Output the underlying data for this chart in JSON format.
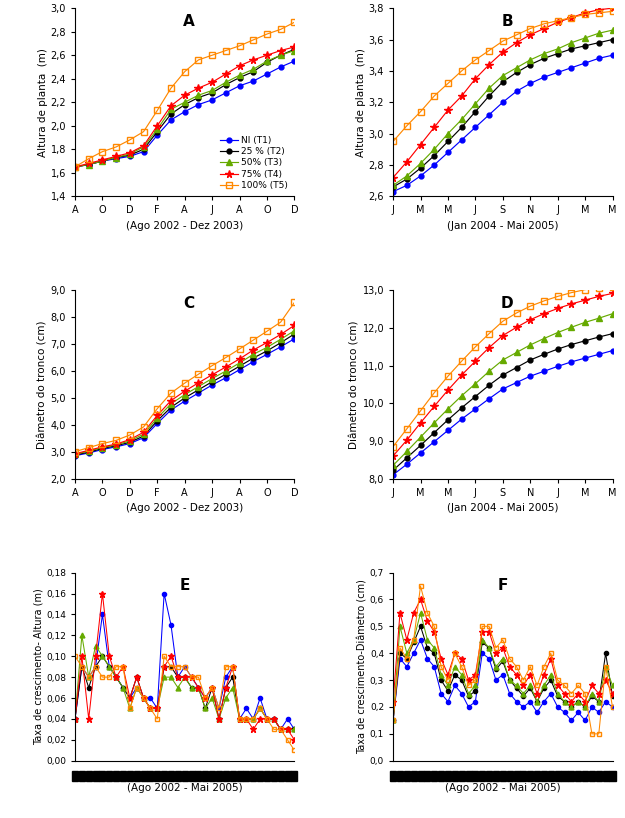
{
  "panel_A": {
    "title": "A",
    "ylabel": "Altura de planta  (m)",
    "xlabel": "(Ago 2002 - Dez 2003)",
    "xticks": [
      "A",
      "O",
      "D",
      "F",
      "A",
      "J",
      "A",
      "O",
      "D"
    ],
    "ylim": [
      1.4,
      3.0
    ],
    "yticks": [
      1.4,
      1.6,
      1.8,
      2.0,
      2.2,
      2.4,
      2.6,
      2.8,
      3.0
    ],
    "n_points": 17,
    "T1": [
      1.65,
      1.67,
      1.7,
      1.72,
      1.74,
      1.78,
      1.92,
      2.05,
      2.12,
      2.18,
      2.22,
      2.28,
      2.34,
      2.38,
      2.44,
      2.5,
      2.55
    ],
    "T2": [
      1.65,
      1.67,
      1.7,
      1.73,
      1.75,
      1.8,
      1.95,
      2.1,
      2.18,
      2.24,
      2.28,
      2.35,
      2.41,
      2.46,
      2.54,
      2.6,
      2.65
    ],
    "T3": [
      1.65,
      1.67,
      1.7,
      1.73,
      1.76,
      1.82,
      1.97,
      2.14,
      2.2,
      2.26,
      2.3,
      2.37,
      2.43,
      2.48,
      2.55,
      2.6,
      2.64
    ],
    "T4": [
      1.65,
      1.68,
      1.71,
      1.74,
      1.77,
      1.83,
      2.0,
      2.17,
      2.26,
      2.32,
      2.37,
      2.44,
      2.51,
      2.56,
      2.6,
      2.64,
      2.67
    ],
    "T5": [
      1.65,
      1.72,
      1.78,
      1.82,
      1.88,
      1.95,
      2.13,
      2.32,
      2.46,
      2.56,
      2.6,
      2.64,
      2.68,
      2.73,
      2.78,
      2.82,
      2.88
    ]
  },
  "panel_B": {
    "title": "B",
    "ylabel": "Altura de planta  (m)",
    "xlabel": "(Jan 2004 - Mai 2005)",
    "xticks": [
      "J",
      "M",
      "M",
      "J",
      "S",
      "N",
      "J",
      "M",
      "M"
    ],
    "ylim": [
      2.6,
      3.8
    ],
    "yticks": [
      2.6,
      2.8,
      3.0,
      3.2,
      3.4,
      3.6,
      3.8
    ],
    "n_points": 17,
    "T1": [
      2.63,
      2.67,
      2.73,
      2.8,
      2.88,
      2.96,
      3.04,
      3.12,
      3.2,
      3.27,
      3.32,
      3.36,
      3.39,
      3.42,
      3.45,
      3.48,
      3.5
    ],
    "T2": [
      2.66,
      2.71,
      2.78,
      2.86,
      2.95,
      3.04,
      3.14,
      3.24,
      3.33,
      3.39,
      3.44,
      3.48,
      3.51,
      3.54,
      3.56,
      3.58,
      3.6
    ],
    "T3": [
      2.67,
      2.73,
      2.81,
      2.9,
      3.0,
      3.09,
      3.19,
      3.29,
      3.37,
      3.42,
      3.47,
      3.51,
      3.54,
      3.58,
      3.61,
      3.64,
      3.66
    ],
    "T4": [
      2.72,
      2.82,
      2.93,
      3.04,
      3.15,
      3.24,
      3.35,
      3.44,
      3.52,
      3.58,
      3.63,
      3.67,
      3.71,
      3.74,
      3.77,
      3.79,
      3.8
    ],
    "T5": [
      2.95,
      3.05,
      3.14,
      3.24,
      3.32,
      3.4,
      3.47,
      3.53,
      3.59,
      3.63,
      3.67,
      3.7,
      3.72,
      3.74,
      3.76,
      3.77,
      3.78
    ]
  },
  "panel_C": {
    "title": "C",
    "ylabel": "Diâmetro do tronco (cm)",
    "xlabel": "(Ago 2002 - Dez 2003)",
    "xticks": [
      "A",
      "O",
      "D",
      "F",
      "A",
      "J",
      "A",
      "O",
      "D"
    ],
    "ylim": [
      2.0,
      9.0
    ],
    "yticks": [
      2.0,
      3.0,
      4.0,
      5.0,
      6.0,
      7.0,
      8.0,
      9.0
    ],
    "n_points": 17,
    "T1": [
      2.85,
      2.95,
      3.08,
      3.18,
      3.3,
      3.52,
      4.05,
      4.55,
      4.88,
      5.18,
      5.48,
      5.75,
      6.05,
      6.35,
      6.62,
      6.9,
      7.2
    ],
    "T2": [
      2.88,
      2.98,
      3.12,
      3.22,
      3.35,
      3.58,
      4.15,
      4.65,
      5.0,
      5.3,
      5.6,
      5.88,
      6.18,
      6.48,
      6.75,
      7.05,
      7.38
    ],
    "T3": [
      2.9,
      3.02,
      3.15,
      3.25,
      3.4,
      3.65,
      4.25,
      4.78,
      5.12,
      5.42,
      5.72,
      6.0,
      6.3,
      6.62,
      6.88,
      7.18,
      7.5
    ],
    "T4": [
      2.92,
      3.05,
      3.18,
      3.28,
      3.45,
      3.72,
      4.35,
      4.9,
      5.25,
      5.56,
      5.86,
      6.15,
      6.45,
      6.78,
      7.06,
      7.36,
      7.7
    ],
    "T5": [
      3.0,
      3.15,
      3.3,
      3.42,
      3.62,
      3.92,
      4.6,
      5.18,
      5.55,
      5.88,
      6.2,
      6.5,
      6.82,
      7.15,
      7.48,
      7.82,
      8.55
    ]
  },
  "panel_D": {
    "title": "D",
    "ylabel": "Diâmetro do tronco (cm)",
    "xlabel": "(Jan 2004 - Mai 2005)",
    "xticks": [
      "J",
      "M",
      "M",
      "J",
      "S",
      "N",
      "J",
      "M",
      "M"
    ],
    "ylim": [
      8.0,
      13.0
    ],
    "yticks": [
      8.0,
      9.0,
      10.0,
      11.0,
      12.0,
      13.0
    ],
    "n_points": 17,
    "T1": [
      8.1,
      8.38,
      8.68,
      8.98,
      9.28,
      9.58,
      9.85,
      10.12,
      10.38,
      10.55,
      10.72,
      10.85,
      10.98,
      11.1,
      11.2,
      11.3,
      11.4
    ],
    "T2": [
      8.22,
      8.55,
      8.88,
      9.22,
      9.56,
      9.88,
      10.18,
      10.48,
      10.75,
      10.95,
      11.15,
      11.3,
      11.44,
      11.56,
      11.66,
      11.76,
      11.85
    ],
    "T3": [
      8.35,
      8.72,
      9.1,
      9.48,
      9.85,
      10.2,
      10.52,
      10.85,
      11.15,
      11.35,
      11.55,
      11.72,
      11.88,
      12.02,
      12.15,
      12.26,
      12.38
    ],
    "T4": [
      8.6,
      9.02,
      9.48,
      9.92,
      10.35,
      10.75,
      11.12,
      11.48,
      11.8,
      12.02,
      12.22,
      12.38,
      12.52,
      12.64,
      12.74,
      12.84,
      12.92
    ],
    "T5": [
      8.85,
      9.32,
      9.8,
      10.28,
      10.72,
      11.12,
      11.5,
      11.85,
      12.18,
      12.4,
      12.58,
      12.72,
      12.84,
      12.94,
      13.02,
      13.06,
      13.1
    ]
  },
  "panel_E": {
    "title": "E",
    "ylabel": "Taxa de crescimento- Altura (m)",
    "xlabel": "(Ago 2002 - Mai 2005)",
    "ylim": [
      0.0,
      0.18
    ],
    "yticks": [
      0.0,
      0.02,
      0.04,
      0.06,
      0.08,
      0.1,
      0.12,
      0.14,
      0.16,
      0.18
    ],
    "n_points": 33,
    "T1": [
      0.04,
      0.09,
      0.08,
      0.09,
      0.14,
      0.09,
      0.08,
      0.07,
      0.06,
      0.07,
      0.06,
      0.06,
      0.05,
      0.16,
      0.13,
      0.08,
      0.09,
      0.08,
      0.07,
      0.06,
      0.07,
      0.05,
      0.08,
      0.09,
      0.04,
      0.05,
      0.04,
      0.06,
      0.04,
      0.04,
      0.03,
      0.04,
      0.03
    ],
    "T2": [
      0.04,
      0.09,
      0.07,
      0.09,
      0.1,
      0.09,
      0.08,
      0.07,
      0.06,
      0.08,
      0.06,
      0.05,
      0.05,
      0.09,
      0.09,
      0.08,
      0.08,
      0.07,
      0.07,
      0.05,
      0.07,
      0.04,
      0.07,
      0.08,
      0.04,
      0.04,
      0.04,
      0.05,
      0.04,
      0.04,
      0.03,
      0.03,
      0.03
    ],
    "T3": [
      0.04,
      0.12,
      0.08,
      0.11,
      0.1,
      0.09,
      0.08,
      0.07,
      0.05,
      0.07,
      0.06,
      0.05,
      0.05,
      0.08,
      0.08,
      0.07,
      0.08,
      0.07,
      0.07,
      0.05,
      0.06,
      0.04,
      0.06,
      0.07,
      0.04,
      0.04,
      0.04,
      0.05,
      0.04,
      0.04,
      0.03,
      0.03,
      0.03
    ],
    "T4": [
      0.04,
      0.1,
      0.04,
      0.1,
      0.16,
      0.1,
      0.08,
      0.09,
      0.06,
      0.08,
      0.06,
      0.05,
      0.05,
      0.09,
      0.1,
      0.08,
      0.08,
      0.08,
      0.07,
      0.06,
      0.07,
      0.04,
      0.07,
      0.09,
      0.04,
      0.04,
      0.03,
      0.04,
      0.04,
      0.04,
      0.03,
      0.03,
      0.02
    ],
    "T5": [
      0.1,
      0.09,
      0.08,
      0.09,
      0.08,
      0.08,
      0.09,
      0.09,
      0.05,
      0.07,
      0.06,
      0.05,
      0.04,
      0.1,
      0.09,
      0.09,
      0.09,
      0.08,
      0.08,
      0.06,
      0.07,
      0.05,
      0.09,
      0.09,
      0.04,
      0.04,
      0.04,
      0.05,
      0.04,
      0.03,
      0.03,
      0.02,
      0.01
    ]
  },
  "panel_F": {
    "title": "F",
    "ylabel": "Taxa de crescimento-Diâmetro (cm)",
    "xlabel": "(Ago 2002 - Mai 2005)",
    "ylim": [
      0.0,
      0.7
    ],
    "yticks": [
      0.0,
      0.1,
      0.2,
      0.3,
      0.4,
      0.5,
      0.6,
      0.7
    ],
    "n_points": 33,
    "T1": [
      0.15,
      0.38,
      0.35,
      0.4,
      0.45,
      0.38,
      0.35,
      0.25,
      0.22,
      0.28,
      0.25,
      0.2,
      0.22,
      0.4,
      0.38,
      0.3,
      0.32,
      0.25,
      0.22,
      0.2,
      0.22,
      0.18,
      0.22,
      0.25,
      0.2,
      0.18,
      0.15,
      0.18,
      0.15,
      0.2,
      0.18,
      0.22,
      0.2
    ],
    "T2": [
      0.15,
      0.4,
      0.38,
      0.44,
      0.5,
      0.42,
      0.4,
      0.3,
      0.26,
      0.32,
      0.3,
      0.24,
      0.26,
      0.44,
      0.42,
      0.34,
      0.37,
      0.3,
      0.27,
      0.24,
      0.27,
      0.22,
      0.27,
      0.3,
      0.24,
      0.22,
      0.2,
      0.22,
      0.2,
      0.24,
      0.22,
      0.4,
      0.24
    ],
    "T3": [
      0.15,
      0.5,
      0.4,
      0.45,
      0.55,
      0.45,
      0.42,
      0.32,
      0.28,
      0.35,
      0.32,
      0.25,
      0.28,
      0.45,
      0.42,
      0.35,
      0.38,
      0.3,
      0.28,
      0.25,
      0.28,
      0.22,
      0.28,
      0.32,
      0.25,
      0.22,
      0.2,
      0.22,
      0.2,
      0.25,
      0.22,
      0.35,
      0.28
    ],
    "T4": [
      0.22,
      0.55,
      0.45,
      0.55,
      0.6,
      0.52,
      0.48,
      0.38,
      0.32,
      0.4,
      0.38,
      0.3,
      0.32,
      0.48,
      0.48,
      0.4,
      0.42,
      0.35,
      0.32,
      0.28,
      0.32,
      0.25,
      0.32,
      0.38,
      0.28,
      0.25,
      0.22,
      0.25,
      0.22,
      0.28,
      0.25,
      0.3,
      0.25
    ],
    "T5": [
      0.15,
      0.42,
      0.38,
      0.45,
      0.65,
      0.55,
      0.5,
      0.35,
      0.3,
      0.4,
      0.35,
      0.28,
      0.3,
      0.5,
      0.5,
      0.42,
      0.45,
      0.38,
      0.35,
      0.3,
      0.35,
      0.28,
      0.35,
      0.4,
      0.3,
      0.28,
      0.25,
      0.28,
      0.25,
      0.1,
      0.1,
      0.35,
      0.2
    ]
  },
  "colors": {
    "T1": "#0000FF",
    "T2": "#000000",
    "T3": "#66AA00",
    "T4": "#FF0000",
    "T5": "#FF8800"
  },
  "legend_labels": [
    "NI (T1)",
    "25 % (T2)",
    "50% (T3)",
    "75% (T4)",
    "100% (T5)"
  ]
}
